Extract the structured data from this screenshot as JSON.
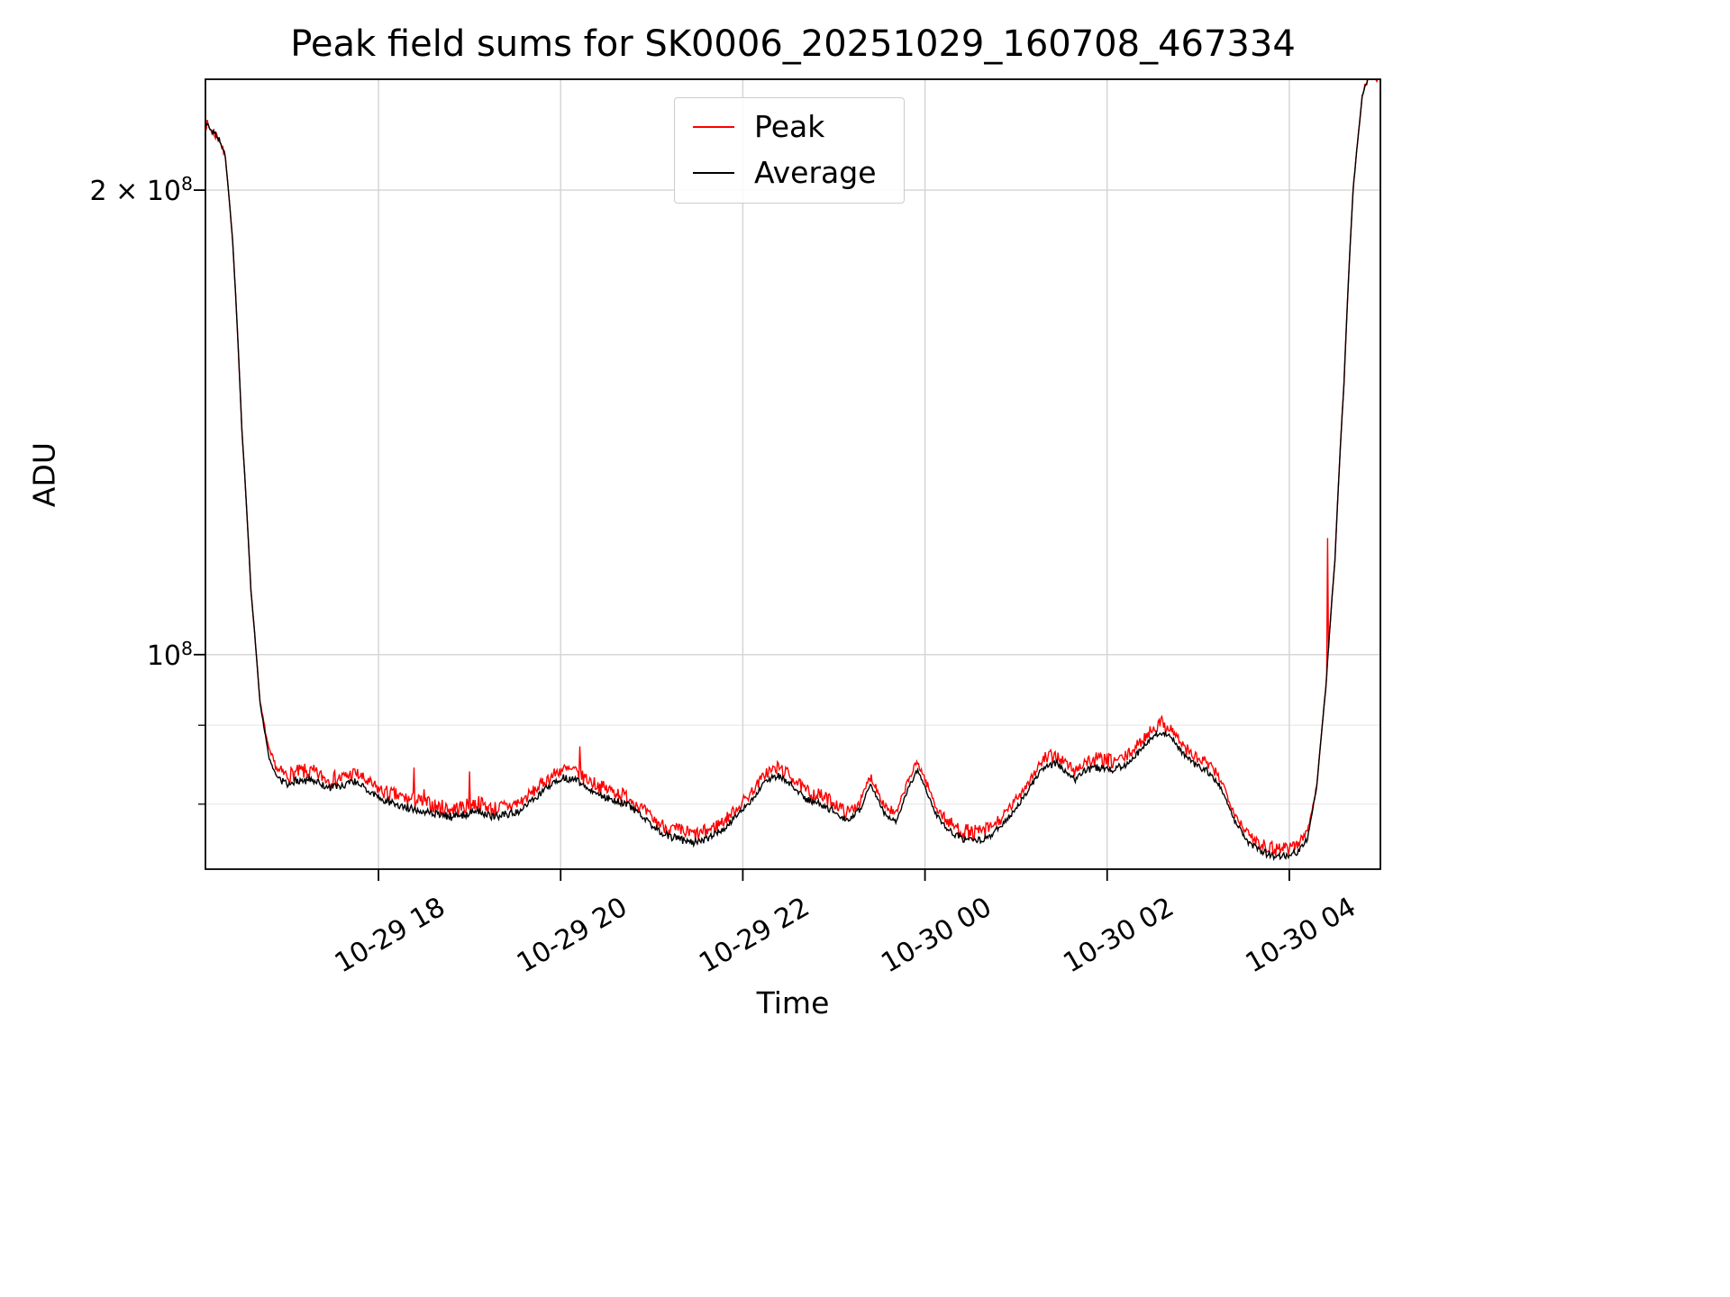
{
  "chart_data": {
    "type": "line",
    "title": "Peak field sums for SK0006_20251029_160708_467334",
    "xlabel": "Time",
    "ylabel": "ADU",
    "x_unit": "hours since 10-29 16:00",
    "xlim": [
      0.1,
      13.0
    ],
    "y_scale": "log",
    "value_scale": 10000000,
    "ylim": [
      7.26,
      23.6
    ],
    "grid": {
      "on": true,
      "major_color": "#d3d3d3",
      "minor_color": "#e9e9e9"
    },
    "x_ticks": [
      {
        "t": 2,
        "label": "10-29 18"
      },
      {
        "t": 4,
        "label": "10-29 20"
      },
      {
        "t": 6,
        "label": "10-29 22"
      },
      {
        "t": 8,
        "label": "10-30 00"
      },
      {
        "t": 10,
        "label": "10-30 02"
      },
      {
        "t": 12,
        "label": "10-30 04"
      }
    ],
    "y_ticks": [
      {
        "v": 20,
        "base": "2 × 10",
        "sup": "8"
      },
      {
        "v": 10,
        "base": "10",
        "sup": "8"
      }
    ],
    "y_minor_ticks": [
      8,
      9
    ],
    "legend": {
      "position": "upper center",
      "entries": [
        "Peak",
        "Average"
      ]
    },
    "noise_seed": 7,
    "sample_step": 0.01,
    "x": [
      0.1,
      0.25,
      0.32,
      0.4,
      0.5,
      0.6,
      0.7,
      0.8,
      0.9,
      1.0,
      1.15,
      1.3,
      1.45,
      1.6,
      1.75,
      1.9,
      2.05,
      2.2,
      2.35,
      2.5,
      2.65,
      2.8,
      2.95,
      3.1,
      3.25,
      3.4,
      3.55,
      3.7,
      3.85,
      4.0,
      4.15,
      4.3,
      4.45,
      4.6,
      4.75,
      4.9,
      5.05,
      5.2,
      5.35,
      5.5,
      5.65,
      5.8,
      5.95,
      6.1,
      6.25,
      6.4,
      6.55,
      6.7,
      6.85,
      7.0,
      7.15,
      7.3,
      7.4,
      7.55,
      7.68,
      7.82,
      7.92,
      8.02,
      8.12,
      8.25,
      8.4,
      8.55,
      8.7,
      8.85,
      9.0,
      9.15,
      9.3,
      9.45,
      9.55,
      9.65,
      9.75,
      9.9,
      10.05,
      10.2,
      10.35,
      10.5,
      10.6,
      10.7,
      10.85,
      11.0,
      11.1,
      11.25,
      11.4,
      11.55,
      11.7,
      11.85,
      12.0,
      12.1,
      12.2,
      12.3,
      12.4,
      12.5,
      12.6,
      12.7,
      12.8,
      12.88,
      12.95,
      13.0
    ],
    "series": [
      {
        "name": "Peak",
        "color": "#ff0000",
        "noise_amp": 0.013,
        "spikes": [
          [
            2.39,
            8.45
          ],
          [
            2.5,
            8.18
          ],
          [
            3.0,
            8.4
          ],
          [
            4.21,
            8.72
          ],
          [
            12.42,
            11.9
          ]
        ],
        "values": [
          22.1,
          21.6,
          21.0,
          18.5,
          14.0,
          11.0,
          9.3,
          8.65,
          8.4,
          8.35,
          8.4,
          8.38,
          8.3,
          8.32,
          8.38,
          8.25,
          8.15,
          8.1,
          8.05,
          8.02,
          7.97,
          7.94,
          7.97,
          8.02,
          7.94,
          7.97,
          8.02,
          8.15,
          8.3,
          8.42,
          8.4,
          8.3,
          8.2,
          8.15,
          8.08,
          7.94,
          7.79,
          7.71,
          7.67,
          7.64,
          7.71,
          7.81,
          7.97,
          8.15,
          8.38,
          8.45,
          8.32,
          8.15,
          8.1,
          8.02,
          7.89,
          8.05,
          8.35,
          8.0,
          7.87,
          8.3,
          8.52,
          8.25,
          7.97,
          7.79,
          7.69,
          7.66,
          7.71,
          7.84,
          8.05,
          8.3,
          8.55,
          8.6,
          8.5,
          8.4,
          8.52,
          8.55,
          8.52,
          8.58,
          8.75,
          8.96,
          9.03,
          8.96,
          8.7,
          8.55,
          8.5,
          8.3,
          7.89,
          7.64,
          7.54,
          7.49,
          7.51,
          7.54,
          7.69,
          8.2,
          9.5,
          11.5,
          15.0,
          20.0,
          23.0,
          23.8,
          23.8,
          23.8
        ]
      },
      {
        "name": "Average",
        "color": "#000000",
        "noise_amp": 0.0065,
        "spikes": [],
        "values": [
          22.1,
          21.6,
          21.0,
          18.5,
          14.0,
          11.0,
          9.3,
          8.55,
          8.3,
          8.25,
          8.3,
          8.28,
          8.2,
          8.22,
          8.28,
          8.15,
          8.05,
          8.0,
          7.95,
          7.92,
          7.88,
          7.85,
          7.88,
          7.92,
          7.85,
          7.88,
          7.92,
          8.05,
          8.2,
          8.32,
          8.3,
          8.2,
          8.1,
          8.05,
          7.98,
          7.85,
          7.7,
          7.62,
          7.58,
          7.55,
          7.62,
          7.72,
          7.88,
          8.05,
          8.28,
          8.35,
          8.22,
          8.05,
          8.0,
          7.92,
          7.8,
          7.95,
          8.25,
          7.9,
          7.78,
          8.2,
          8.42,
          8.15,
          7.88,
          7.7,
          7.6,
          7.57,
          7.62,
          7.75,
          7.95,
          8.2,
          8.45,
          8.5,
          8.4,
          8.3,
          8.42,
          8.45,
          8.42,
          8.48,
          8.65,
          8.85,
          8.92,
          8.85,
          8.6,
          8.45,
          8.4,
          8.2,
          7.8,
          7.55,
          7.45,
          7.4,
          7.42,
          7.45,
          7.6,
          8.2,
          9.5,
          11.5,
          15.0,
          20.0,
          23.0,
          23.8,
          23.8,
          23.8
        ]
      }
    ]
  }
}
